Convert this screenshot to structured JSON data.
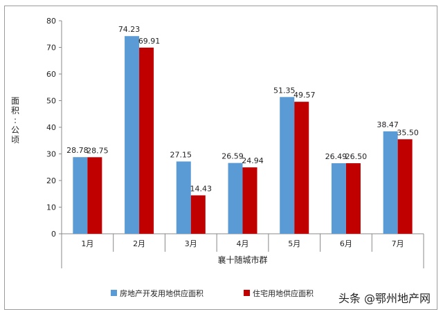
{
  "watermark": "头条 @鄂州地产网",
  "chart_data": {
    "type": "bar",
    "ylabel": "面积：公顷",
    "xgroup_label": "襄十随城市群",
    "categories": [
      "1月",
      "2月",
      "3月",
      "4月",
      "5月",
      "6月",
      "7月"
    ],
    "ylim": [
      0,
      80
    ],
    "yticks": [
      0,
      10,
      20,
      30,
      40,
      50,
      60,
      70,
      80
    ],
    "grid": false,
    "legend_position": "bottom",
    "series": [
      {
        "name": "房地产开发用地供应面积",
        "color": "#5B9BD5",
        "values": [
          28.78,
          74.23,
          27.15,
          26.59,
          51.35,
          26.49,
          38.47
        ],
        "labels": [
          "28.78",
          "74.23",
          "27.15",
          "26.59",
          "51.35",
          "26.49",
          "38.47"
        ]
      },
      {
        "name": "住宅用地供应面积",
        "color": "#C00000",
        "values": [
          28.75,
          69.91,
          14.43,
          24.94,
          49.57,
          26.5,
          35.5
        ],
        "labels": [
          "28.75",
          "69.91",
          "14.43",
          "24.94",
          "49.57",
          "26.50",
          "35.50"
        ]
      }
    ]
  }
}
